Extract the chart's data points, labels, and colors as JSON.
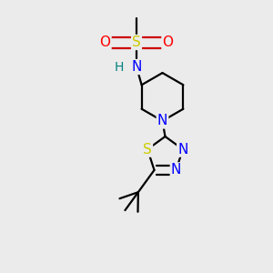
{
  "background_color": "#ebebeb",
  "bond_color": "#000000",
  "bond_width": 1.6,
  "atom_colors": {
    "S": "#cccc00",
    "O": "#ff0000",
    "N": "#0000ff",
    "NH_N": "#0000ff",
    "NH_H": "#008080",
    "C": "#000000"
  },
  "font_size": 10,
  "fig_width": 3.0,
  "fig_height": 3.0,
  "dpi": 100
}
